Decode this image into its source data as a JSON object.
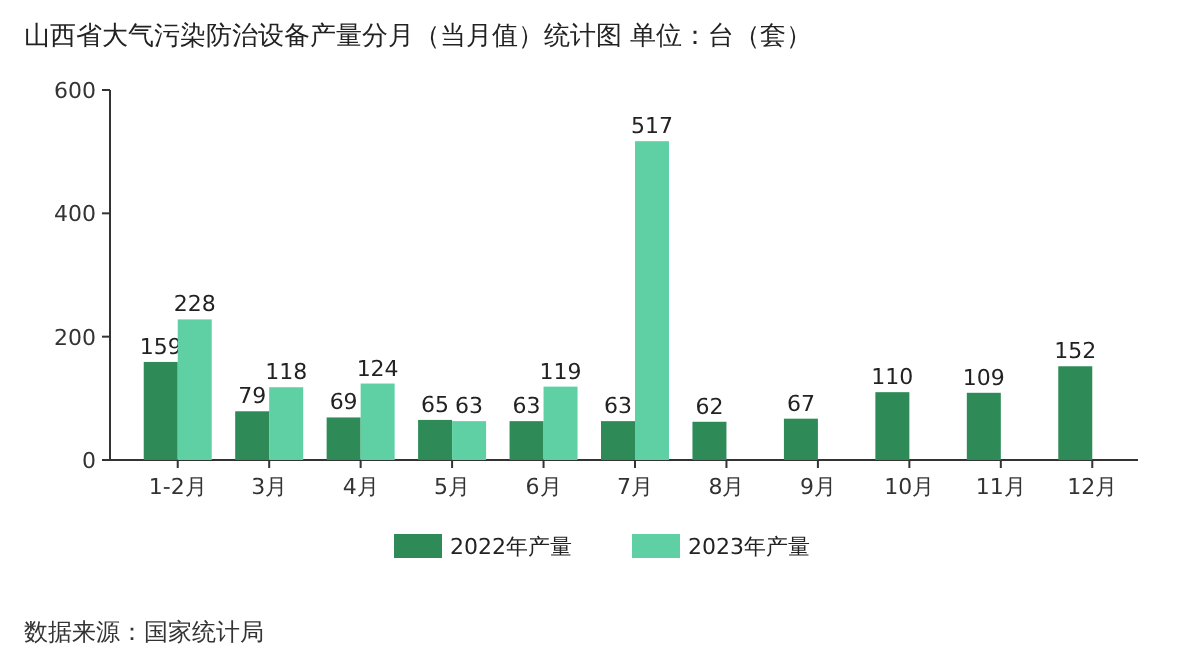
{
  "chart_data": {
    "type": "bar",
    "title": "山西省大气污染防治设备产量分月（当月值）统计图 单位：台（套）",
    "categories": [
      "1-2月",
      "3月",
      "4月",
      "5月",
      "6月",
      "7月",
      "8月",
      "9月",
      "10月",
      "11月",
      "12月"
    ],
    "series": [
      {
        "name": "2022年产量",
        "color": "#2e8b57",
        "values": [
          159,
          79,
          69,
          65,
          63,
          63,
          62,
          67,
          110,
          109,
          152
        ]
      },
      {
        "name": "2023年产量",
        "color": "#5fcfa4",
        "values": [
          228,
          118,
          124,
          63,
          119,
          517,
          null,
          null,
          null,
          null,
          null
        ]
      }
    ],
    "ylim": [
      0,
      600
    ],
    "yticks": [
      0,
      200,
      400,
      600
    ],
    "data_labels": true,
    "legend": "bottom",
    "grid": false,
    "annotations": [
      "数据来源：国家统计局"
    ]
  }
}
